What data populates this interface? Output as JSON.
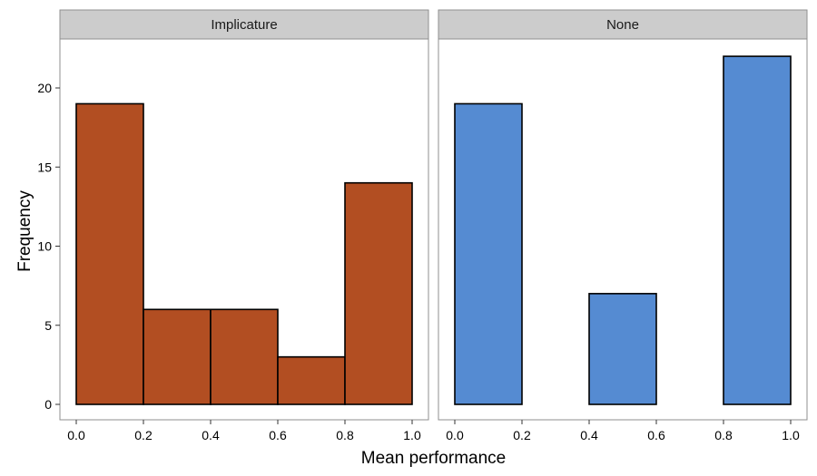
{
  "chart_data": {
    "type": "bar",
    "xlabel": "Mean performance",
    "ylabel": "Frequency",
    "bin_edges": [
      0.0,
      0.2,
      0.4,
      0.6,
      0.8,
      1.0
    ],
    "xlim": [
      0.0,
      1.0
    ],
    "ylim": [
      0,
      22
    ],
    "x_ticks": [
      0.0,
      0.2,
      0.4,
      0.6,
      0.8,
      1.0
    ],
    "x_tick_labels": [
      "0.0",
      "0.2",
      "0.4",
      "0.6",
      "0.8",
      "1.0"
    ],
    "y_ticks": [
      0,
      5,
      10,
      15,
      20
    ],
    "y_tick_labels": [
      "0",
      "5",
      "10",
      "15",
      "20"
    ],
    "grid": false,
    "legend": "none",
    "panels": [
      {
        "strip": "Implicature",
        "color": "#B24E22",
        "values": [
          19,
          6,
          6,
          3,
          14
        ]
      },
      {
        "strip": "None",
        "color": "#558BD2",
        "values": [
          19,
          0,
          7,
          0,
          22
        ]
      }
    ]
  }
}
